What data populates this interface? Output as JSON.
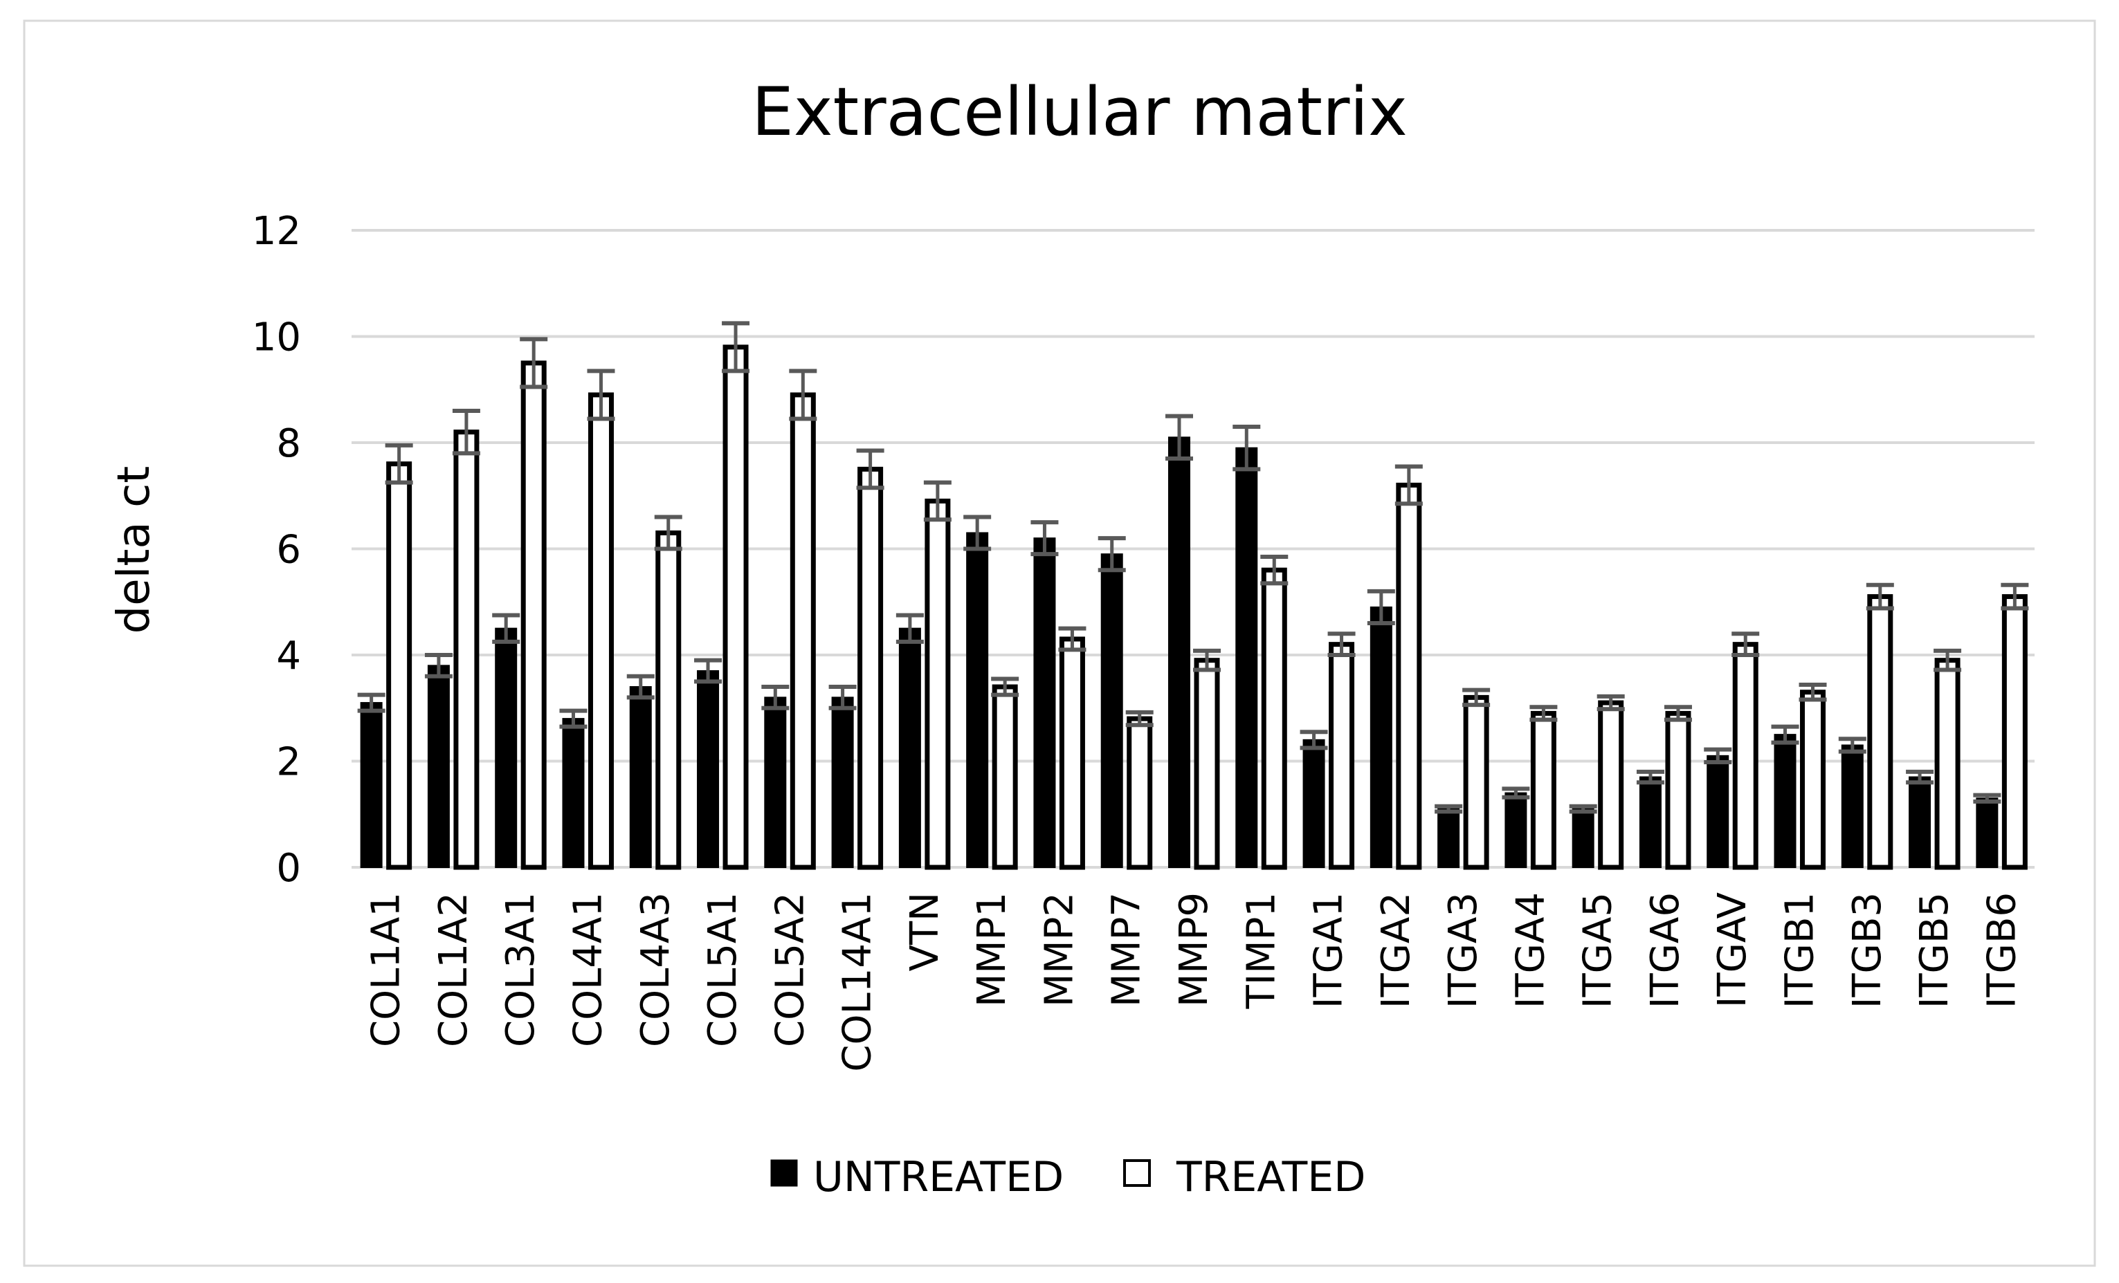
{
  "chart_data": {
    "type": "bar",
    "title": "Extracellular matrix",
    "xlabel": "",
    "ylabel": "delta ct",
    "ylim": [
      0,
      12
    ],
    "yticks": [
      "0",
      "2",
      "4",
      "6",
      "8",
      "10",
      "12"
    ],
    "grid": true,
    "legend_position": "bottom",
    "categories": [
      "COL1A1",
      "COL1A2",
      "COL3A1",
      "COL4A1",
      "COL4A3",
      "COL5A1",
      "COL5A2",
      "COL14A1",
      "VTN",
      "MMP1",
      "MMP2",
      "MMP7",
      "MMP9",
      "TIMP1",
      "ITGA1",
      "ITGA2",
      "ITGA3",
      "ITGA4",
      "ITGA5",
      "ITGA6",
      "ITGAV",
      "ITGB1",
      "ITGB3",
      "ITGB5",
      "ITGB6"
    ],
    "series": [
      {
        "name": "UNTREATED",
        "color": "#000000",
        "values": [
          3.1,
          3.8,
          4.5,
          2.8,
          3.4,
          3.7,
          3.2,
          3.2,
          4.5,
          6.3,
          6.2,
          5.9,
          8.1,
          7.9,
          2.4,
          4.9,
          1.1,
          1.4,
          1.1,
          1.7,
          2.1,
          2.5,
          2.3,
          1.7,
          1.3
        ],
        "errors": [
          0.15,
          0.2,
          0.25,
          0.15,
          0.2,
          0.2,
          0.2,
          0.2,
          0.25,
          0.3,
          0.3,
          0.3,
          0.4,
          0.4,
          0.15,
          0.3,
          0.05,
          0.08,
          0.05,
          0.1,
          0.12,
          0.15,
          0.12,
          0.1,
          0.06
        ]
      },
      {
        "name": "TREATED",
        "color": "#ffffff",
        "values": [
          7.6,
          8.2,
          9.5,
          8.9,
          6.3,
          9.8,
          8.9,
          7.5,
          6.9,
          3.4,
          4.3,
          2.8,
          3.9,
          5.6,
          4.2,
          7.2,
          3.2,
          2.9,
          3.1,
          2.9,
          4.2,
          3.3,
          5.1,
          3.9,
          5.1
        ],
        "errors": [
          0.35,
          0.4,
          0.45,
          0.45,
          0.3,
          0.45,
          0.45,
          0.35,
          0.35,
          0.15,
          0.2,
          0.12,
          0.18,
          0.25,
          0.2,
          0.35,
          0.14,
          0.12,
          0.12,
          0.12,
          0.2,
          0.14,
          0.22,
          0.18,
          0.22
        ]
      }
    ]
  }
}
